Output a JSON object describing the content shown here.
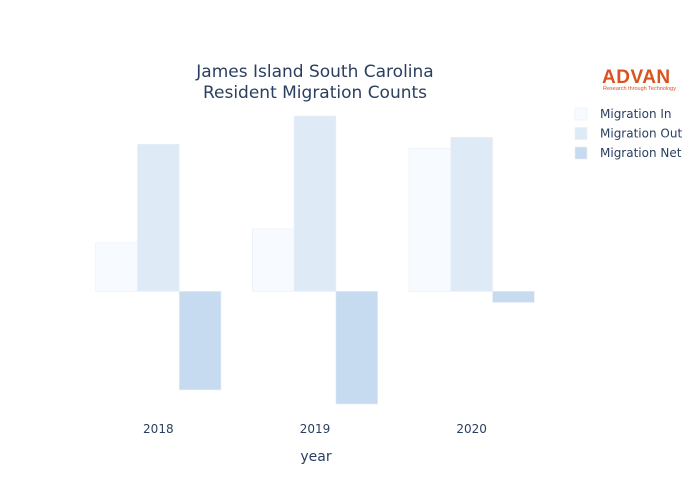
{
  "logo": {
    "brand": "ADVAN",
    "tagline": "Research through Technology",
    "color": "#d9531e"
  },
  "chart_data": {
    "type": "bar",
    "title_lines": [
      "James Island South Carolina",
      "Resident Migration Counts"
    ],
    "xlabel": "year",
    "ylabel": "",
    "categories": [
      "2018",
      "2019",
      "2020"
    ],
    "ylim": [
      -4060,
      6320
    ],
    "grid": false,
    "legend_position": "top-right",
    "series": [
      {
        "name": "Migration In",
        "color": "#f7fbff",
        "values": [
          1750,
          2250,
          5150
        ]
      },
      {
        "name": "Migration Out",
        "color": "#deebf7",
        "values": [
          5300,
          6320,
          5550
        ]
      },
      {
        "name": "Migration Net",
        "color": "#c6dbef",
        "values": [
          -3550,
          -4060,
          -400
        ]
      }
    ]
  }
}
